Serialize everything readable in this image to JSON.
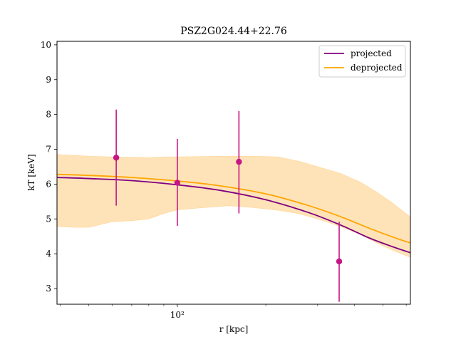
{
  "chart_data": {
    "type": "line",
    "title": "PSZ2G024.44+22.76",
    "xlabel": "r [kpc]",
    "ylabel": "kT [keV]",
    "xscale": "log",
    "xlim": [
      39,
      620
    ],
    "ylim": [
      2.55,
      10.1
    ],
    "x_major_tick_label": "10²",
    "y_ticks": [
      3,
      4,
      5,
      6,
      7,
      8,
      9,
      10
    ],
    "legend": {
      "placement": "top-right",
      "entries": [
        "projected",
        "deprojected"
      ]
    },
    "colors": {
      "projected": "#800080",
      "deprojected": "#FFA500",
      "band": "#FFE0B0",
      "points": "#C71585"
    },
    "series": [
      {
        "name": "projected",
        "x": [
          39,
          50,
          70,
          100,
          140,
          200,
          280,
          360,
          450,
          540,
          620
        ],
        "y": [
          6.19,
          6.16,
          6.1,
          5.98,
          5.82,
          5.55,
          5.18,
          4.82,
          4.45,
          4.2,
          4.03
        ]
      },
      {
        "name": "deprojected",
        "x": [
          39,
          50,
          70,
          100,
          140,
          200,
          280,
          360,
          450,
          540,
          620
        ],
        "y": [
          6.28,
          6.25,
          6.19,
          6.09,
          5.95,
          5.72,
          5.38,
          5.06,
          4.73,
          4.48,
          4.31
        ]
      }
    ],
    "band": {
      "x": [
        39,
        45,
        50,
        60,
        70,
        80,
        90,
        100,
        120,
        150,
        180,
        220,
        260,
        300,
        360,
        420,
        480,
        540,
        620
      ],
      "upper": [
        6.85,
        6.82,
        6.8,
        6.78,
        6.77,
        6.76,
        6.78,
        6.78,
        6.79,
        6.8,
        6.8,
        6.78,
        6.65,
        6.5,
        6.3,
        6.05,
        5.75,
        5.45,
        5.05
      ],
      "lower": [
        4.78,
        4.76,
        4.76,
        4.92,
        4.95,
        5.0,
        5.16,
        5.26,
        5.32,
        5.38,
        5.33,
        5.25,
        5.15,
        5.0,
        4.78,
        4.55,
        4.3,
        4.1,
        3.9
      ]
    },
    "points": [
      {
        "x": 62,
        "y": 6.76,
        "yerr_low": 1.38,
        "yerr_high": 1.38
      },
      {
        "x": 100,
        "y": 6.04,
        "yerr_low": 1.24,
        "yerr_high": 1.26
      },
      {
        "x": 162,
        "y": 6.64,
        "yerr_low": 1.48,
        "yerr_high": 1.46
      },
      {
        "x": 355,
        "y": 3.78,
        "yerr_low": 1.16,
        "yerr_high": 1.14
      }
    ]
  }
}
